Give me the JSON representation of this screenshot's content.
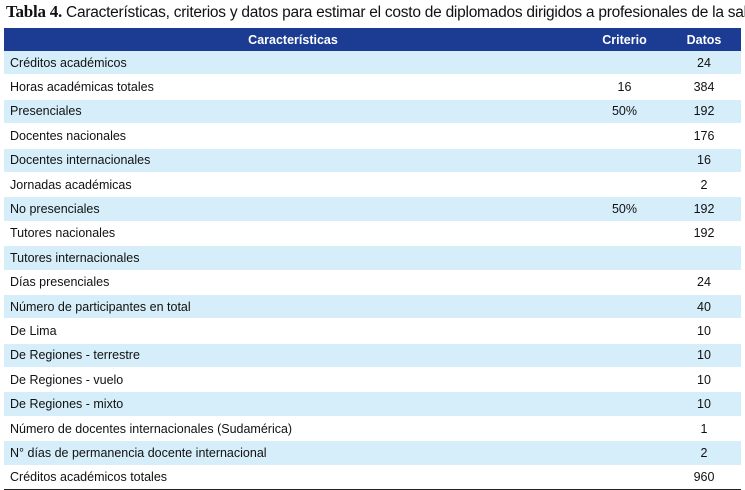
{
  "caption": {
    "label": "Tabla 4.",
    "text": " Características, criterios y datos para estimar el costo de diplomados dirigidos a profesionales de la salud."
  },
  "table": {
    "headers": [
      "Características",
      "Criterio",
      "Datos"
    ],
    "rows": [
      [
        "Créditos académicos",
        "",
        "24"
      ],
      [
        " Horas académicas totales",
        "16",
        "384"
      ],
      [
        "Presenciales",
        "50%",
        "192"
      ],
      [
        "Docentes nacionales",
        "",
        "176"
      ],
      [
        "Docentes internacionales",
        "",
        "16"
      ],
      [
        "Jornadas académicas",
        "",
        "2"
      ],
      [
        "No presenciales",
        "50%",
        "192"
      ],
      [
        "Tutores nacionales",
        "",
        "192"
      ],
      [
        "Tutores internacionales",
        "",
        ""
      ],
      [
        "Días presenciales",
        "",
        "24"
      ],
      [
        "Número de participantes en total",
        "",
        "40"
      ],
      [
        "De Lima",
        "",
        "10"
      ],
      [
        "De Regiones - terrestre",
        "",
        "10"
      ],
      [
        "De Regiones - vuelo",
        "",
        "10"
      ],
      [
        "De Regiones - mixto",
        "",
        "10"
      ],
      [
        "Número de docentes internacionales (Sudamérica)",
        "",
        "1"
      ],
      [
        "N° días de permanencia docente internacional",
        "",
        "2"
      ],
      [
        "Créditos académicos totales",
        "",
        "960"
      ]
    ]
  }
}
